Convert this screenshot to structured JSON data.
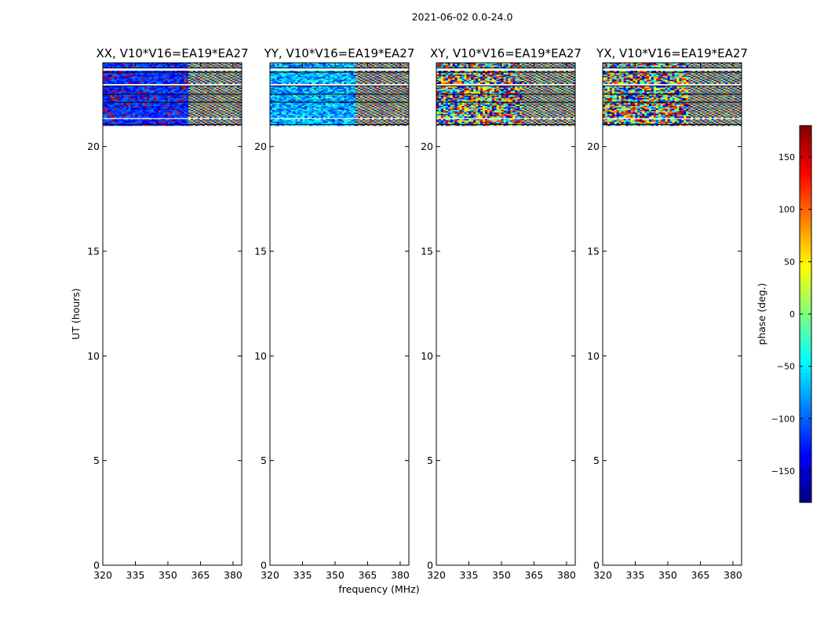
{
  "chart_data": {
    "type": "heatmap",
    "suptitle": "2021-06-02 0.0-24.0",
    "xlabel": "frequency (MHz)",
    "ylabel": "UT (hours)",
    "xlim": [
      320,
      384
    ],
    "ylim": [
      0,
      24
    ],
    "xticks": [
      320,
      335,
      350,
      365,
      380
    ],
    "yticks": [
      0,
      5,
      10,
      15,
      20
    ],
    "panels": [
      {
        "title": "XX, V10*V16=EA19*EA27",
        "character": "low-phase"
      },
      {
        "title": "YY, V10*V16=EA19*EA27",
        "character": "mid-phase"
      },
      {
        "title": "XY, V10*V16=EA19*EA27",
        "character": "random-phase"
      },
      {
        "title": "YX, V10*V16=EA19*EA27",
        "character": "random-phase"
      }
    ],
    "data_time_range_hours": [
      21.0,
      24.0
    ],
    "blank_time_rows_hours": [
      [
        22.85,
        23.0
      ],
      [
        23.65,
        23.72
      ],
      [
        22.1,
        22.15
      ],
      [
        21.3,
        21.35
      ]
    ],
    "fringe_start_mhz": 360,
    "colorbar": {
      "label": "phase (deg.)",
      "range": [
        -180,
        180
      ],
      "ticks": [
        -150,
        -100,
        -50,
        0,
        50,
        100,
        150
      ],
      "tick_labels": [
        "−150",
        "−100",
        "−50",
        "0",
        "50",
        "100",
        "150"
      ],
      "colormap": "jet"
    }
  }
}
